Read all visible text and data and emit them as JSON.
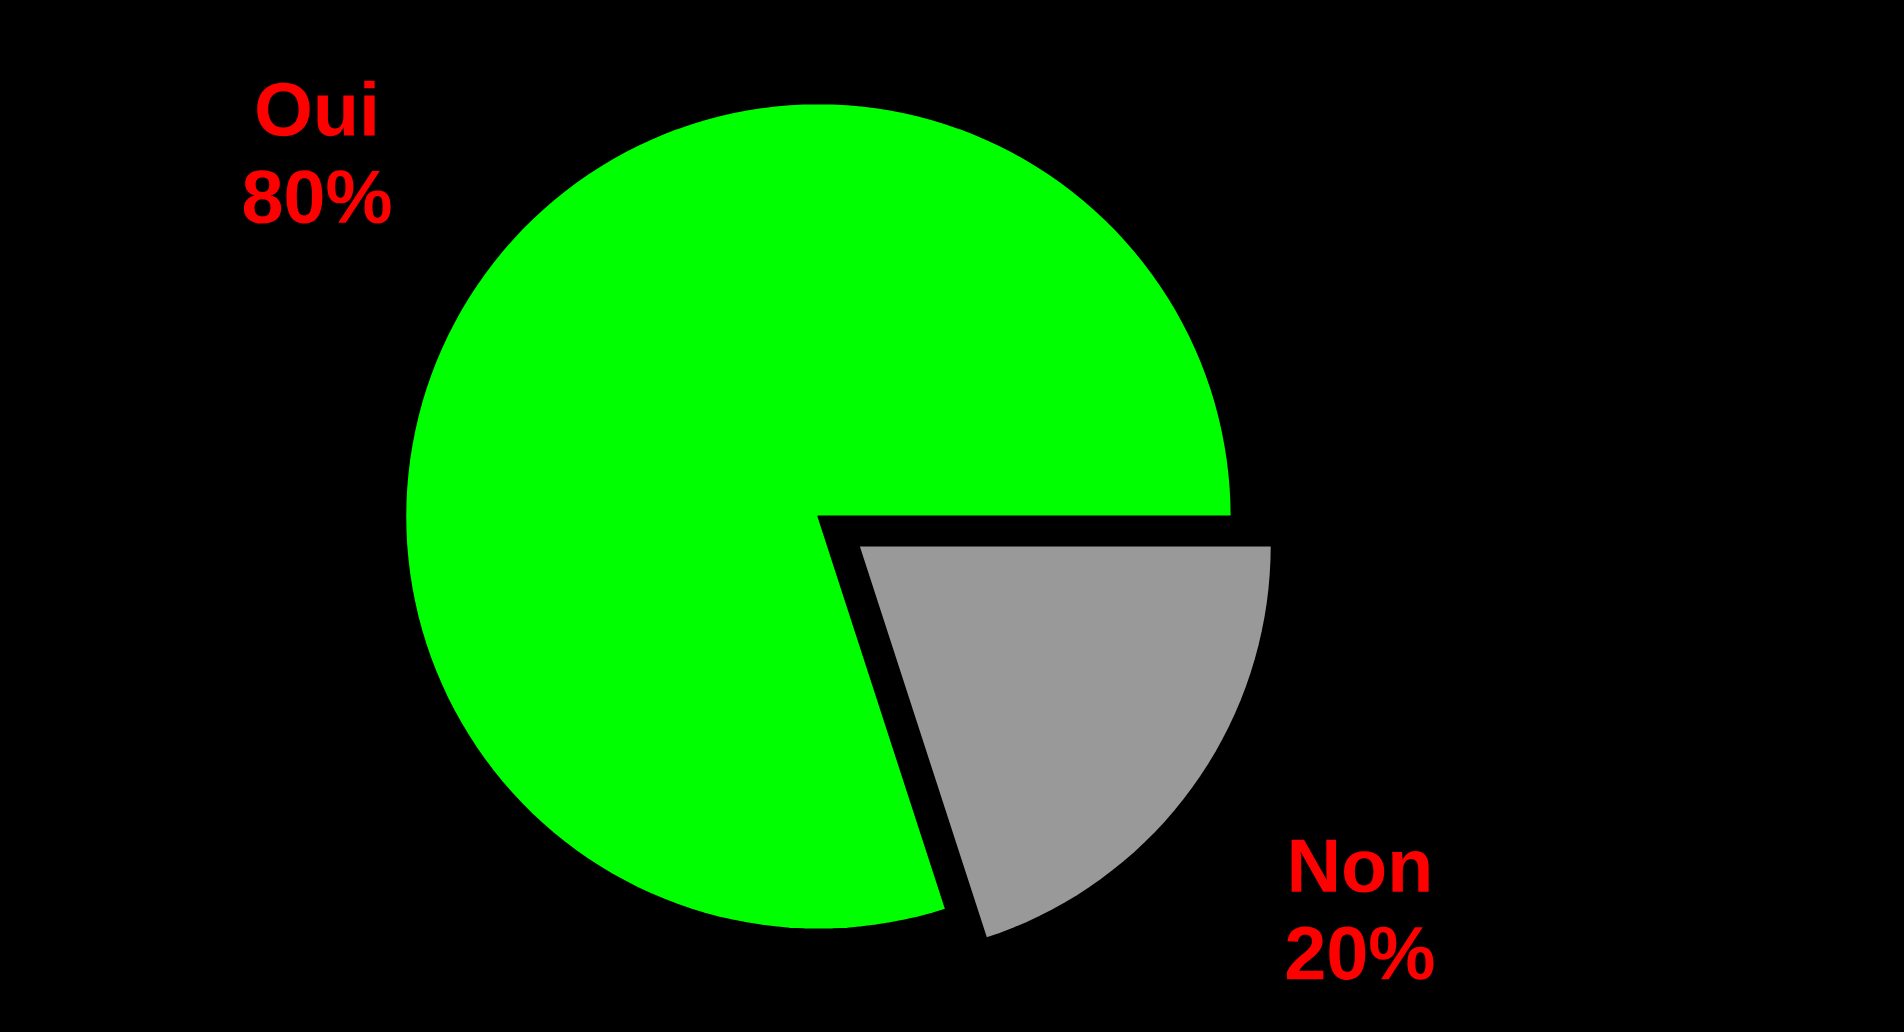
{
  "chart_data": {
    "type": "pie",
    "categories": [
      "Oui",
      "Non"
    ],
    "values": [
      80,
      20
    ],
    "colors": [
      "#00ff00",
      "#999999"
    ],
    "value_labels": [
      "80%",
      "20%"
    ]
  }
}
